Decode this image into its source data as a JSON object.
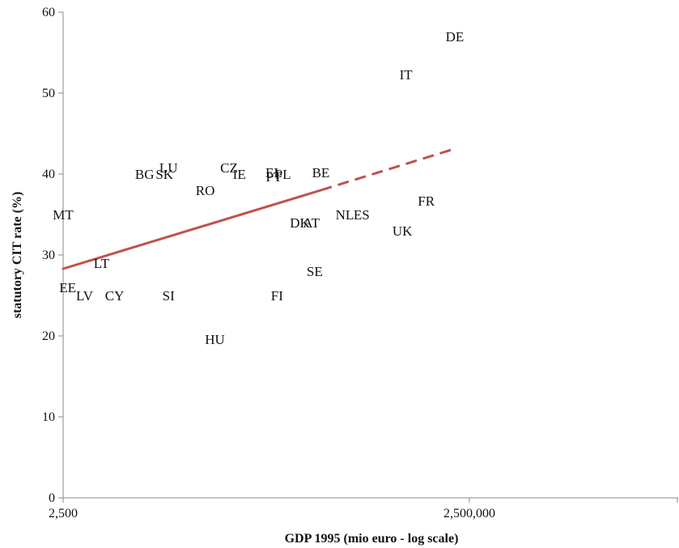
{
  "chart_data": {
    "type": "scatter",
    "title": "",
    "xlabel": "GDP 1995 (mio euro - log scale)",
    "ylabel": "statutory CIT rate (%)",
    "x_scale": "log",
    "x_ticks": [
      {
        "value": 2500,
        "label": "2,500"
      },
      {
        "value": 2500000,
        "label": "2,500,000"
      }
    ],
    "ylim": [
      0,
      60
    ],
    "y_ticks": [
      0,
      10,
      20,
      30,
      40,
      50,
      60
    ],
    "grid": false,
    "legend": "none",
    "points": [
      {
        "label": "DE",
        "x": 1950000,
        "y": 57
      },
      {
        "label": "IT",
        "x": 850000,
        "y": 52.3
      },
      {
        "label": "FR",
        "x": 1200000,
        "y": 36.7
      },
      {
        "label": "UK",
        "x": 800000,
        "y": 33
      },
      {
        "label": "ES",
        "x": 400000,
        "y": 35
      },
      {
        "label": "NL",
        "x": 300000,
        "y": 35
      },
      {
        "label": "BE",
        "x": 200000,
        "y": 40.2
      },
      {
        "label": "SE",
        "x": 180000,
        "y": 28
      },
      {
        "label": "AT",
        "x": 170000,
        "y": 34
      },
      {
        "label": "DK",
        "x": 140000,
        "y": 34
      },
      {
        "label": "FI",
        "x": 95000,
        "y": 25
      },
      {
        "label": "PL",
        "x": 105000,
        "y": 40
      },
      {
        "label": "EL",
        "x": 90000,
        "y": 40.2
      },
      {
        "label": "PT",
        "x": 90000,
        "y": 39.7
      },
      {
        "label": "IE",
        "x": 50000,
        "y": 40
      },
      {
        "label": "CZ",
        "x": 42000,
        "y": 40.8
      },
      {
        "label": "HU",
        "x": 33000,
        "y": 19.6
      },
      {
        "label": "RO",
        "x": 28000,
        "y": 38
      },
      {
        "label": "LU",
        "x": 15000,
        "y": 40.8
      },
      {
        "label": "SK",
        "x": 14000,
        "y": 40
      },
      {
        "label": "BG",
        "x": 10000,
        "y": 40
      },
      {
        "label": "SI",
        "x": 15000,
        "y": 25
      },
      {
        "label": "LV",
        "x": 3600,
        "y": 25
      },
      {
        "label": "CY",
        "x": 6000,
        "y": 25
      },
      {
        "label": "EE",
        "x": 2700,
        "y": 26
      },
      {
        "label": "LT",
        "x": 4800,
        "y": 29
      },
      {
        "label": "MT",
        "x": 2500,
        "y": 35
      }
    ],
    "trendline": {
      "x_start": 2500,
      "y_start": 28.3,
      "x_solid_end": 200000,
      "y_solid_end": 38,
      "x_end": 1850000,
      "y_end": 43,
      "color": "#c0504d"
    }
  }
}
